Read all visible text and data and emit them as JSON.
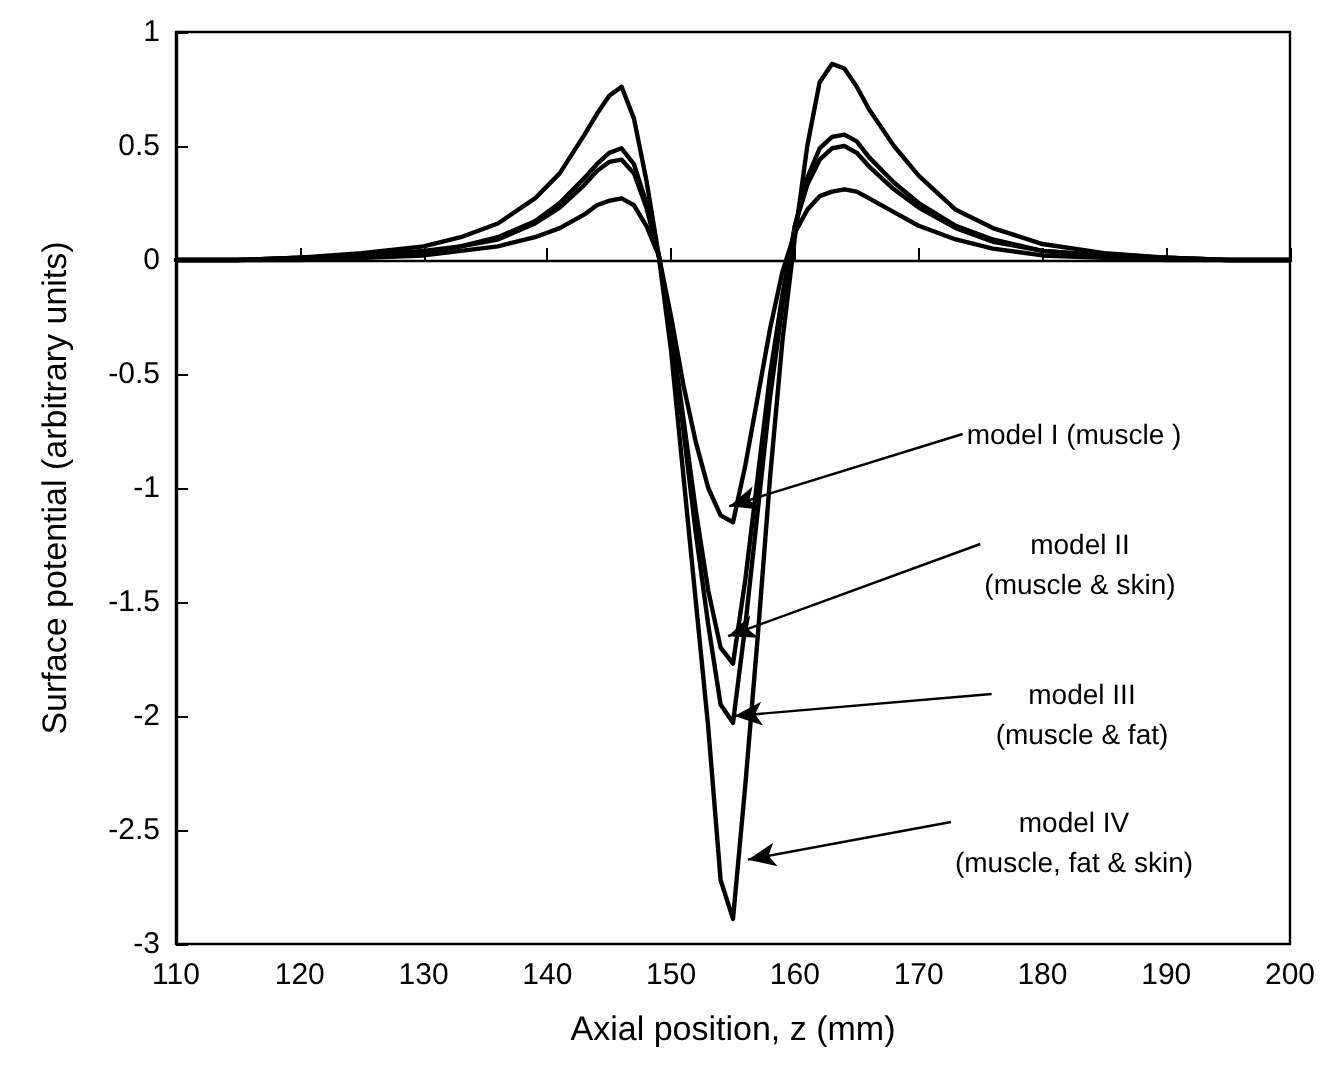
{
  "chart_data": {
    "type": "line",
    "xlabel": "Axial position, z (mm)",
    "ylabel": "Surface potential (arbitrary units)",
    "x": [
      110,
      115,
      120,
      125,
      130,
      133,
      136,
      139,
      141,
      143,
      144,
      145,
      146,
      147,
      148,
      149,
      150,
      151,
      152,
      153,
      154,
      155,
      156,
      157,
      158,
      159,
      160,
      161,
      162,
      163,
      164,
      165,
      166,
      168,
      170,
      173,
      176,
      180,
      185,
      190,
      195,
      200
    ],
    "series": [
      {
        "color": "#000000",
        "values": [
          0,
          0,
          0,
          0.01,
          0.02,
          0.04,
          0.06,
          0.1,
          0.14,
          0.2,
          0.24,
          0.26,
          0.27,
          0.24,
          0.15,
          0.02,
          -0.25,
          -0.55,
          -0.8,
          -1.0,
          -1.12,
          -1.15,
          -0.9,
          -0.6,
          -0.3,
          -0.05,
          0.12,
          0.22,
          0.28,
          0.3,
          0.31,
          0.3,
          0.27,
          0.21,
          0.15,
          0.09,
          0.05,
          0.02,
          0.01,
          0,
          0,
          0
        ]
      },
      {
        "color": "#000000",
        "values": [
          0,
          0,
          0.01,
          0.01,
          0.03,
          0.06,
          0.09,
          0.16,
          0.23,
          0.33,
          0.39,
          0.43,
          0.44,
          0.38,
          0.23,
          0.02,
          -0.3,
          -0.7,
          -1.1,
          -1.45,
          -1.7,
          -1.77,
          -1.4,
          -0.95,
          -0.5,
          -0.15,
          0.15,
          0.33,
          0.44,
          0.49,
          0.5,
          0.47,
          0.41,
          0.31,
          0.23,
          0.14,
          0.08,
          0.04,
          0.02,
          0.01,
          0,
          0
        ]
      },
      {
        "color": "#000000",
        "values": [
          0,
          0,
          0.01,
          0.02,
          0.04,
          0.06,
          0.1,
          0.17,
          0.25,
          0.36,
          0.42,
          0.47,
          0.49,
          0.42,
          0.25,
          0.02,
          -0.3,
          -0.75,
          -1.2,
          -1.6,
          -1.95,
          -2.03,
          -1.6,
          -1.1,
          -0.6,
          -0.2,
          0.15,
          0.36,
          0.49,
          0.54,
          0.55,
          0.52,
          0.45,
          0.34,
          0.25,
          0.15,
          0.09,
          0.04,
          0.02,
          0.01,
          0,
          0
        ]
      },
      {
        "color": "#000000",
        "values": [
          0,
          0,
          0.01,
          0.03,
          0.06,
          0.1,
          0.16,
          0.27,
          0.38,
          0.55,
          0.64,
          0.72,
          0.76,
          0.62,
          0.35,
          0.02,
          -0.4,
          -0.95,
          -1.5,
          -2.05,
          -2.72,
          -2.89,
          -2.3,
          -1.65,
          -0.95,
          -0.35,
          0.1,
          0.5,
          0.78,
          0.86,
          0.84,
          0.76,
          0.66,
          0.5,
          0.37,
          0.22,
          0.14,
          0.07,
          0.03,
          0.01,
          0,
          0
        ]
      }
    ],
    "annotations": [
      {
        "text": "model I (muscle )",
        "x": 154.7,
        "y": -1.08
      },
      {
        "text": "model II\n(muscle & skin)",
        "x": 154.6,
        "y": -1.65
      },
      {
        "text": "model III\n(muscle & fat)",
        "x": 155.1,
        "y": -2.0
      },
      {
        "text": "model IV\n(muscle, fat & skin)",
        "x": 156.2,
        "y": -2.63
      }
    ],
    "xlim": [
      110,
      200
    ],
    "xticks": [
      110,
      120,
      130,
      140,
      150,
      160,
      170,
      180,
      190,
      200
    ],
    "ylim": [
      -3,
      1
    ],
    "yticks": [
      -3,
      -2.5,
      -2,
      -1.5,
      -1,
      -0.5,
      0,
      0.5,
      1
    ],
    "marker": "none",
    "line_style": "solid"
  }
}
